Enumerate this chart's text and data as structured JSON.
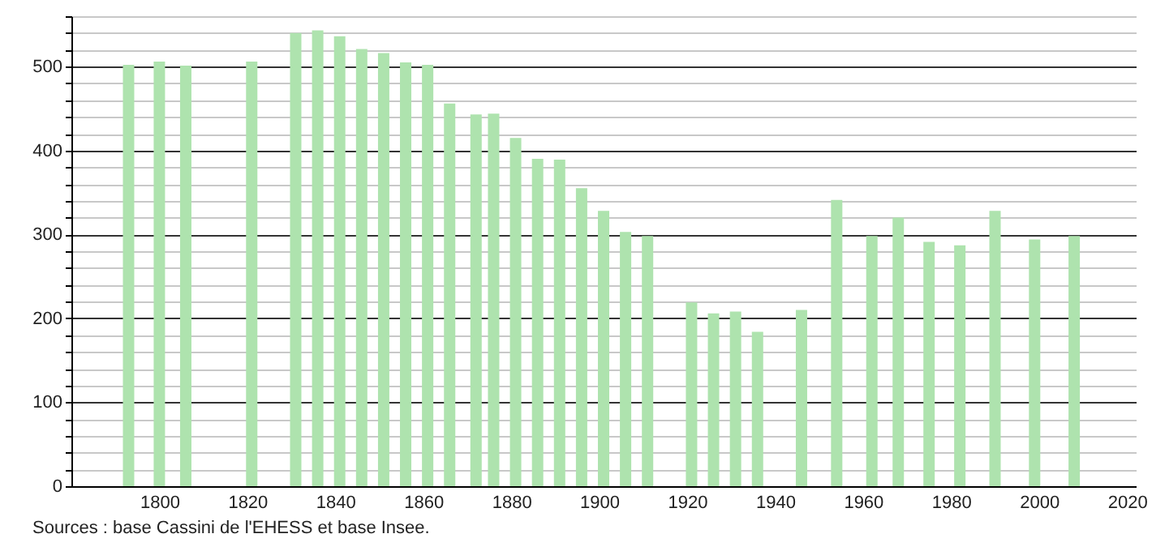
{
  "chart_data": {
    "type": "bar",
    "x": [
      1793,
      1800,
      1806,
      1821,
      1831,
      1836,
      1841,
      1846,
      1851,
      1856,
      1861,
      1866,
      1872,
      1876,
      1881,
      1886,
      1891,
      1896,
      1901,
      1906,
      1911,
      1921,
      1926,
      1931,
      1936,
      1946,
      1954,
      1962,
      1968,
      1975,
      1982,
      1990,
      1999,
      2008
    ],
    "values": [
      502,
      506,
      501,
      506,
      540,
      543,
      536,
      521,
      516,
      505,
      502,
      456,
      443,
      444,
      415,
      390,
      389,
      355,
      328,
      303,
      298,
      219,
      206,
      208,
      184,
      210,
      341,
      298,
      320,
      291,
      287,
      328,
      294,
      298
    ],
    "color": "#aee3ae",
    "xlim": [
      1780,
      2022
    ],
    "xticks": [
      1800,
      1820,
      1840,
      1860,
      1880,
      1900,
      1920,
      1940,
      1960,
      1980,
      2000,
      2020
    ],
    "ylim": [
      0,
      560
    ],
    "yticks": [
      0,
      {
        "value": 20,
        "label": null
      },
      {
        "value": 40,
        "label": null
      },
      {
        "value": 60,
        "label": null
      },
      {
        "value": 80,
        "label": null
      },
      100,
      {
        "value": 120,
        "label": null
      },
      {
        "value": 140,
        "label": null
      },
      {
        "value": 160,
        "label": null
      },
      {
        "value": 180,
        "label": null
      },
      200,
      {
        "value": 220,
        "label": null
      },
      {
        "value": 240,
        "label": null
      },
      {
        "value": 260,
        "label": null
      },
      {
        "value": 280,
        "label": null
      },
      300,
      {
        "value": 320,
        "label": null
      },
      {
        "value": 340,
        "label": null
      },
      {
        "value": 360,
        "label": null
      },
      {
        "value": 380,
        "label": null
      },
      400,
      {
        "value": 420,
        "label": null
      },
      {
        "value": 440,
        "label": null
      },
      {
        "value": 460,
        "label": null
      },
      {
        "value": 480,
        "label": null
      },
      500,
      {
        "value": 520,
        "label": null
      },
      {
        "value": 540,
        "label": null
      },
      {
        "value": 560,
        "label": null
      }
    ],
    "grid": "y",
    "annotations": [
      "Sources : base Cassini de l'EHESS et base Insee."
    ]
  }
}
